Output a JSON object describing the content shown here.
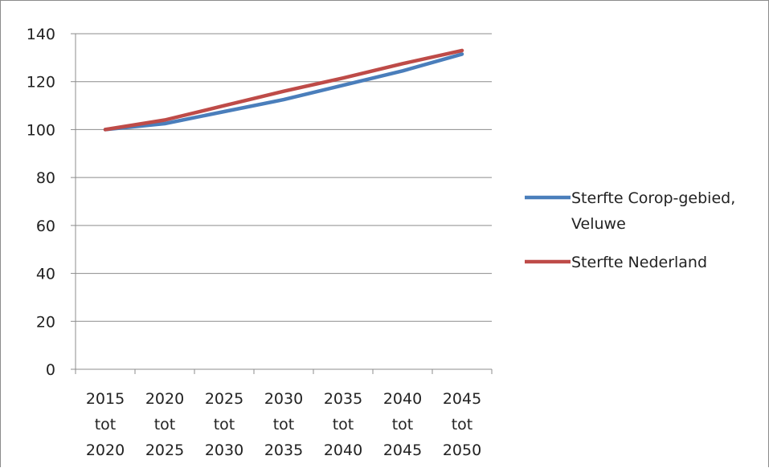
{
  "chart_data": {
    "type": "line",
    "categories": [
      [
        "2015",
        "tot",
        "2020"
      ],
      [
        "2020",
        "tot",
        "2025"
      ],
      [
        "2025",
        "tot",
        "2030"
      ],
      [
        "2030",
        "tot",
        "2035"
      ],
      [
        "2035",
        "tot",
        "2040"
      ],
      [
        "2040",
        "tot",
        "2045"
      ],
      [
        "2045",
        "tot",
        "2050"
      ]
    ],
    "series": [
      {
        "name": "Sterfte Corop-gebied, Veluwe",
        "name_lines": [
          "Sterfte Corop-gebied,",
          "Veluwe"
        ],
        "color": "#4a7ebb",
        "values": [
          100,
          102.5,
          107.5,
          112.5,
          118.5,
          124.5,
          131.5
        ]
      },
      {
        "name": "Sterfte Nederland",
        "name_lines": [
          "Sterfte Nederland"
        ],
        "color": "#be4b48",
        "values": [
          100,
          104,
          110,
          116,
          121.5,
          127.5,
          133
        ]
      }
    ],
    "yticks": [
      0,
      20,
      40,
      60,
      80,
      100,
      120,
      140
    ],
    "ylim": [
      0,
      140
    ],
    "grid": true,
    "legend_position": "right"
  }
}
